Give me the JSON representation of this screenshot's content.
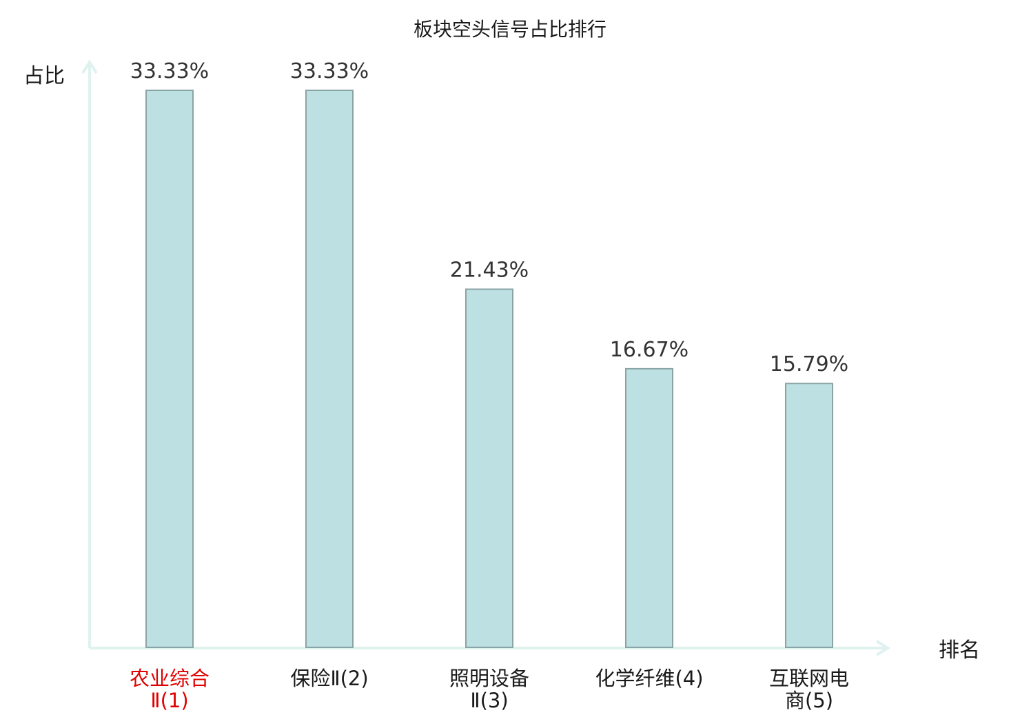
{
  "chart_data": {
    "type": "bar",
    "title": "板块空头信号占比排行",
    "ylabel": "占比",
    "xlabel": "排名",
    "ylim": [
      0,
      35
    ],
    "grid": false,
    "categories": [
      {
        "line1": "农业综合",
        "line2": "Ⅱ(1)",
        "highlight": true
      },
      {
        "line1": "保险Ⅱ(2)",
        "line2": "",
        "highlight": false
      },
      {
        "line1": "照明设备",
        "line2": "Ⅱ(3)",
        "highlight": false
      },
      {
        "line1": "化学纤维(4)",
        "line2": "",
        "highlight": false
      },
      {
        "line1": "互联网电",
        "line2": "商(5)",
        "highlight": false
      }
    ],
    "values": [
      33.33,
      33.33,
      21.43,
      16.67,
      15.79
    ],
    "value_labels": [
      "33.33%",
      "33.33%",
      "21.43%",
      "16.67%",
      "15.79%"
    ]
  },
  "colors": {
    "bar_fill": "#bde0e2",
    "bar_stroke": "#8aa4a6",
    "axis": "#dff2ef",
    "text": "#1a1a1a",
    "value_text": "#333333",
    "highlight_text": "#e00000"
  }
}
